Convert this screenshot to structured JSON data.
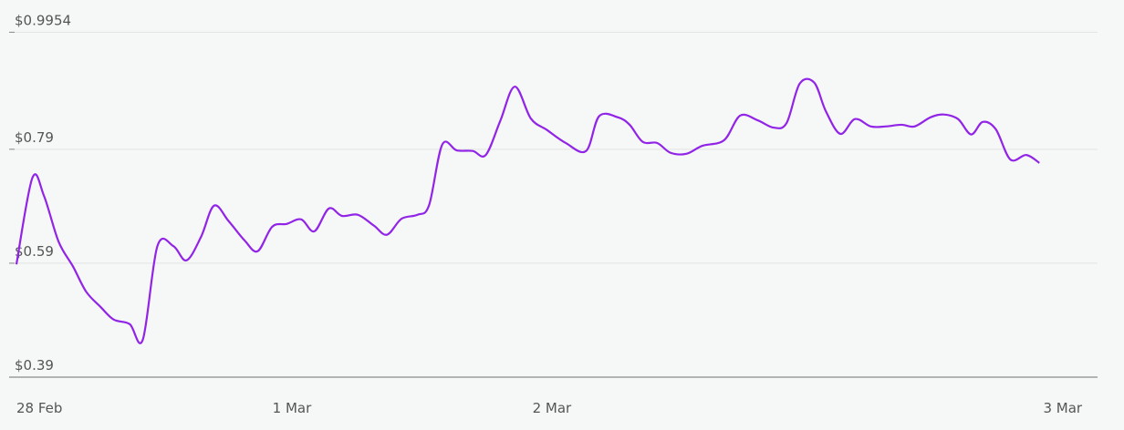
{
  "chart_data": {
    "type": "line",
    "x": [
      0,
      1.1,
      1.9,
      2.9,
      3.9,
      4.8,
      5.8,
      6.7,
      7.8,
      8.7,
      9.7,
      10.8,
      11.7,
      12.7,
      13.6,
      14.6,
      15.7,
      16.6,
      17.6,
      18.6,
      19.6,
      20.5,
      21.5,
      22.4,
      23.5,
      24.6,
      25.5,
      26.5,
      27.6,
      28.4,
      29.3,
      30.3,
      31.4,
      32.3,
      33.3,
      34.3,
      35.4,
      36.5,
      37.8,
      39.2,
      40.1,
      41.4,
      42.2,
      43.1,
      44.1,
      45.0,
      46.1,
      47.2,
      48.7,
      49.8,
      51.0,
      52.1,
      53.0,
      53.9,
      54.9,
      55.7,
      56.7,
      57.7,
      58.8,
      59.8,
      60.9,
      61.8,
      62.9,
      63.8,
      64.8,
      65.7,
      66.5,
      67.4,
      68.4,
      69.5,
      70.4
    ],
    "series": [
      {
        "color": "#9124e6",
        "values": [
          0.588,
          0.74,
          0.708,
          0.628,
          0.584,
          0.54,
          0.513,
          0.491,
          0.483,
          0.456,
          0.62,
          0.62,
          0.595,
          0.636,
          0.691,
          0.664,
          0.63,
          0.611,
          0.654,
          0.659,
          0.667,
          0.646,
          0.686,
          0.673,
          0.675,
          0.656,
          0.64,
          0.668,
          0.675,
          0.692,
          0.798,
          0.788,
          0.787,
          0.78,
          0.84,
          0.9,
          0.844,
          0.824,
          0.801,
          0.787,
          0.848,
          0.846,
          0.833,
          0.803,
          0.801,
          0.784,
          0.782,
          0.796,
          0.806,
          0.849,
          0.841,
          0.828,
          0.836,
          0.905,
          0.907,
          0.857,
          0.817,
          0.843,
          0.83,
          0.83,
          0.833,
          0.83,
          0.846,
          0.851,
          0.843,
          0.816,
          0.838,
          0.825,
          0.772,
          0.78,
          0.766
        ]
      }
    ],
    "xlim": [
      0,
      74.4
    ],
    "xticks": [
      {
        "value": 0,
        "label": "28 Feb"
      },
      {
        "value": 18.96,
        "label": "1 Mar"
      },
      {
        "value": 36.85,
        "label": "2 Mar"
      },
      {
        "value": 72,
        "label": "3 Mar"
      }
    ],
    "ylim": [
      0.39,
      1.02
    ],
    "yticks": [
      {
        "value": 0.39,
        "label": "$0.39"
      },
      {
        "value": 0.59,
        "label": "$0.59"
      },
      {
        "value": 0.79,
        "label": "$0.79"
      },
      {
        "value": 0.9954,
        "label": "$0.9954"
      }
    ],
    "grid": true
  }
}
